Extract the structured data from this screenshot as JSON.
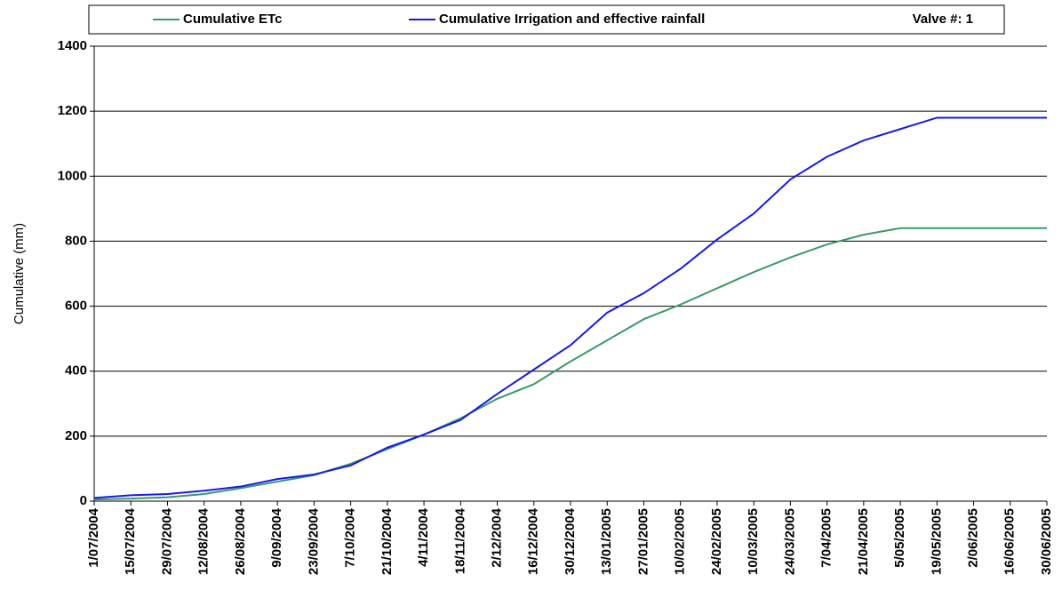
{
  "chart_data": {
    "type": "line",
    "y_label": "Cumulative (mm)",
    "legend_note": "Valve #: 1",
    "categories": [
      "1/07/2004",
      "15/07/2004",
      "29/07/2004",
      "12/08/2004",
      "26/08/2004",
      "9/09/2004",
      "23/09/2004",
      "7/10/2004",
      "21/10/2004",
      "4/11/2004",
      "18/11/2004",
      "2/12/2004",
      "16/12/2004",
      "30/12/2004",
      "13/01/2005",
      "27/01/2005",
      "10/02/2005",
      "24/02/2005",
      "10/03/2005",
      "24/03/2005",
      "7/04/2005",
      "21/04/2005",
      "5/05/2005",
      "19/05/2005",
      "2/06/2005",
      "16/06/2005",
      "30/06/2005"
    ],
    "series": [
      {
        "name": "Cumulative ETc",
        "color": "#3a9a6a",
        "values": [
          5,
          8,
          12,
          22,
          40,
          60,
          80,
          115,
          160,
          205,
          255,
          315,
          360,
          430,
          495,
          560,
          605,
          655,
          705,
          750,
          790,
          820,
          840,
          840,
          840,
          840,
          840
        ]
      },
      {
        "name": "Cumulative Irrigation and effective rainfall",
        "color": "#1a1ae6",
        "values": [
          10,
          18,
          22,
          32,
          45,
          68,
          82,
          110,
          165,
          205,
          250,
          330,
          405,
          480,
          580,
          640,
          715,
          805,
          885,
          990,
          1060,
          1110,
          1145,
          1180,
          1180,
          1180,
          1180
        ]
      }
    ],
    "ylim": [
      0,
      1400
    ],
    "yticks": [
      0,
      200,
      400,
      600,
      800,
      1000,
      1200,
      1400
    ],
    "grid": true
  }
}
